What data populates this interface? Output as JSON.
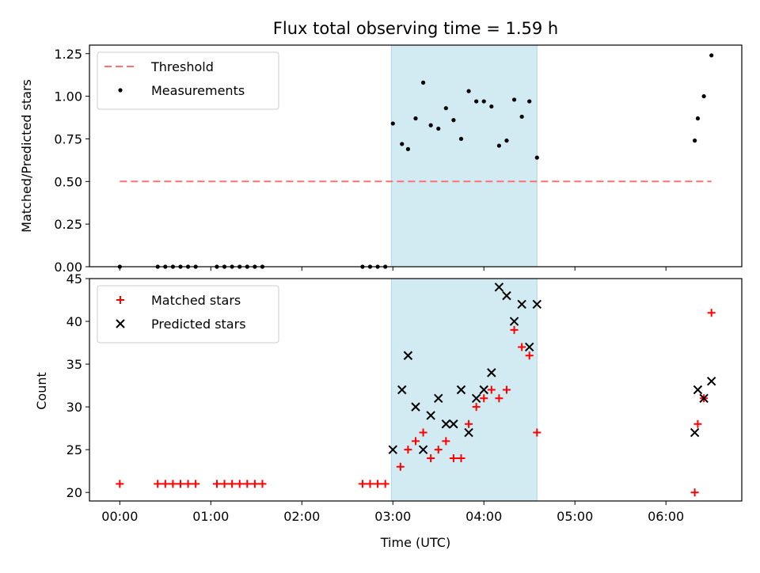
{
  "figure": {
    "title": "Flux total observing time = 1.59 h",
    "highlight_color": "#add8e6",
    "x_ticks": [
      "00:00",
      "01:00",
      "02:00",
      "03:00",
      "04:00",
      "05:00",
      "06:00"
    ],
    "highlight_span": [
      "02:59",
      "04:35"
    ]
  },
  "chart_data": [
    {
      "type": "scatter",
      "ylabel": "Matched/Predicted stars",
      "xlim": [
        "-00:20",
        "06:50"
      ],
      "ylim": [
        0,
        1.3
      ],
      "y_ticks": [
        "0.00",
        "0.25",
        "0.50",
        "0.75",
        "1.00",
        "1.25"
      ],
      "legend_position": "top-left",
      "threshold": {
        "name": "Threshold",
        "value": 0.5,
        "x_range": [
          "00:00",
          "06:30"
        ],
        "color": "#ff7070"
      },
      "series": [
        {
          "name": "Measurements",
          "color": "#000000",
          "marker": "dot",
          "points": [
            [
              "00:00",
              0
            ],
            [
              "00:25",
              0
            ],
            [
              "00:30",
              0
            ],
            [
              "00:35",
              0
            ],
            [
              "00:40",
              0
            ],
            [
              "00:45",
              0
            ],
            [
              "00:50",
              0
            ],
            [
              "01:04",
              0
            ],
            [
              "01:09",
              0
            ],
            [
              "01:14",
              0
            ],
            [
              "01:19",
              0
            ],
            [
              "01:24",
              0
            ],
            [
              "01:29",
              0
            ],
            [
              "01:34",
              0
            ],
            [
              "02:40",
              0
            ],
            [
              "02:45",
              0
            ],
            [
              "02:50",
              0
            ],
            [
              "02:55",
              0
            ],
            [
              "03:00",
              0.84
            ],
            [
              "03:06",
              0.72
            ],
            [
              "03:10",
              0.69
            ],
            [
              "03:15",
              0.87
            ],
            [
              "03:20",
              1.08
            ],
            [
              "03:25",
              0.83
            ],
            [
              "03:30",
              0.81
            ],
            [
              "03:35",
              0.93
            ],
            [
              "03:40",
              0.86
            ],
            [
              "03:45",
              0.75
            ],
            [
              "03:50",
              1.03
            ],
            [
              "03:55",
              0.97
            ],
            [
              "04:00",
              0.97
            ],
            [
              "04:05",
              0.94
            ],
            [
              "04:10",
              0.71
            ],
            [
              "04:15",
              0.74
            ],
            [
              "04:20",
              0.98
            ],
            [
              "04:25",
              0.88
            ],
            [
              "04:30",
              0.97
            ],
            [
              "04:35",
              0.64
            ],
            [
              "06:19",
              0.74
            ],
            [
              "06:21",
              0.87
            ],
            [
              "06:25",
              1.0
            ],
            [
              "06:30",
              1.24
            ]
          ]
        }
      ]
    },
    {
      "type": "scatter",
      "ylabel": "Count",
      "xlabel": "Time (UTC)",
      "xlim": [
        "-00:20",
        "06:50"
      ],
      "ylim": [
        19,
        45
      ],
      "y_ticks": [
        "20",
        "25",
        "30",
        "35",
        "40",
        "45"
      ],
      "legend_position": "top-left",
      "series": [
        {
          "name": "Matched stars",
          "color": "#ff0000",
          "marker": "plus",
          "points": [
            [
              "00:00",
              21
            ],
            [
              "00:25",
              21
            ],
            [
              "00:30",
              21
            ],
            [
              "00:35",
              21
            ],
            [
              "00:40",
              21
            ],
            [
              "00:45",
              21
            ],
            [
              "00:50",
              21
            ],
            [
              "01:04",
              21
            ],
            [
              "01:09",
              21
            ],
            [
              "01:14",
              21
            ],
            [
              "01:19",
              21
            ],
            [
              "01:24",
              21
            ],
            [
              "01:29",
              21
            ],
            [
              "01:34",
              21
            ],
            [
              "02:40",
              21
            ],
            [
              "02:45",
              21
            ],
            [
              "02:50",
              21
            ],
            [
              "02:55",
              21
            ],
            [
              "03:05",
              23
            ],
            [
              "03:10",
              25
            ],
            [
              "03:15",
              26
            ],
            [
              "03:20",
              27
            ],
            [
              "03:25",
              24
            ],
            [
              "03:30",
              25
            ],
            [
              "03:35",
              26
            ],
            [
              "03:40",
              24
            ],
            [
              "03:45",
              24
            ],
            [
              "03:50",
              28
            ],
            [
              "03:55",
              30
            ],
            [
              "04:00",
              31
            ],
            [
              "04:05",
              32
            ],
            [
              "04:10",
              31
            ],
            [
              "04:15",
              32
            ],
            [
              "04:20",
              39
            ],
            [
              "04:25",
              37
            ],
            [
              "04:30",
              36
            ],
            [
              "04:35",
              27
            ],
            [
              "06:19",
              20
            ],
            [
              "06:21",
              28
            ],
            [
              "06:25",
              31
            ],
            [
              "06:30",
              41
            ]
          ]
        },
        {
          "name": "Predicted stars",
          "color": "#000000",
          "marker": "x",
          "points": [
            [
              "03:00",
              25
            ],
            [
              "03:06",
              32
            ],
            [
              "03:10",
              36
            ],
            [
              "03:15",
              30
            ],
            [
              "03:20",
              25
            ],
            [
              "03:25",
              29
            ],
            [
              "03:30",
              31
            ],
            [
              "03:35",
              28
            ],
            [
              "03:40",
              28
            ],
            [
              "03:45",
              32
            ],
            [
              "03:50",
              27
            ],
            [
              "03:55",
              31
            ],
            [
              "04:00",
              32
            ],
            [
              "04:05",
              34
            ],
            [
              "04:10",
              44
            ],
            [
              "04:15",
              43
            ],
            [
              "04:20",
              40
            ],
            [
              "04:25",
              42
            ],
            [
              "04:30",
              37
            ],
            [
              "04:35",
              42
            ],
            [
              "06:19",
              27
            ],
            [
              "06:21",
              32
            ],
            [
              "06:25",
              31
            ],
            [
              "06:30",
              33
            ]
          ]
        }
      ]
    }
  ]
}
